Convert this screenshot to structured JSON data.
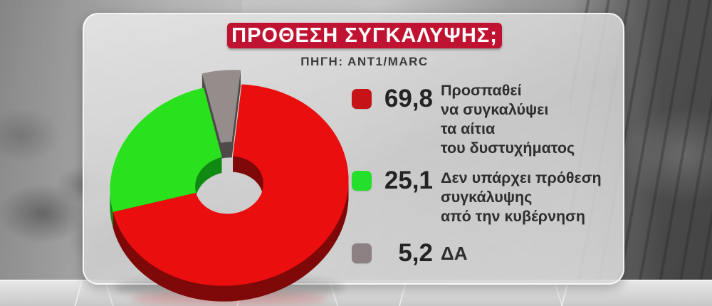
{
  "header": {
    "title": "ΠΡΟΘΕΣΗ ΣΥΓΚΑΛΥΨΗΣ;",
    "source": "ΠΗΓΗ: ΑΝΤ1/MARC",
    "banner_color": "#c01331"
  },
  "chart_data": {
    "type": "pie",
    "donut": true,
    "style": "3d-exploded",
    "title": "ΠΡΟΘΕΣΗ ΣΥΓΚΑΛΥΨΗΣ;",
    "source": "ΠΗΓΗ: ΑΝΤ1/MARC",
    "legend_position": "right",
    "start_angle_deg": -6,
    "draw_order_clockwise_from_top": [
      2,
      0,
      1
    ],
    "slices": [
      {
        "label": "Προσπαθεί να συγκαλύψει τα αίτια του δυστυχήματος",
        "value": 69.8,
        "display_value": "69,8",
        "color": "#ea0e0e",
        "side_color": "#7f0808",
        "exploded": false
      },
      {
        "label": "Δεν υπάρχει πρόθεση συγκάλυψης από την κυβέρνηση",
        "value": 25.1,
        "display_value": "25,1",
        "color": "#2ae11d",
        "side_color": "#108a12",
        "exploded": false
      },
      {
        "label": "ΔΑ",
        "value": 5.2,
        "display_value": "5,2",
        "color": "#958d8c",
        "side_color": "#4f4a49",
        "exploded": true
      }
    ]
  },
  "legend": {
    "items": [
      {
        "value": "69,8",
        "swatch_color": "#c51317",
        "lines": [
          "Προσπαθεί",
          "να συγκαλύψει",
          "τα αίτια",
          "του δυστυχήματος"
        ]
      },
      {
        "value": "25,1",
        "swatch_color": "#24e02c",
        "lines": [
          "Δεν υπάρχει πρόθεση",
          "συγκάλυψης",
          "από την κυβέρνηση"
        ]
      },
      {
        "value": "5,2",
        "swatch_color": "#8c8083",
        "lines": [
          "ΔΑ"
        ]
      }
    ]
  }
}
